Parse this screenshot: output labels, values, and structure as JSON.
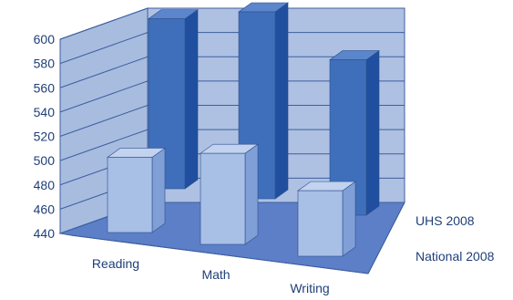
{
  "chart_data": {
    "type": "bar",
    "categories": [
      "Reading",
      "Math",
      "Writing"
    ],
    "series": [
      {
        "name": "National 2008",
        "values": [
          502,
          515,
          494
        ]
      },
      {
        "name": "UHS 2008",
        "values": [
          580,
          594,
          568
        ]
      }
    ],
    "yticks": [
      440,
      460,
      480,
      500,
      520,
      540,
      560,
      580,
      600
    ],
    "ylim": [
      440,
      600
    ],
    "grid": true,
    "legend_position": "right-depth-axis",
    "colors": {
      "wall": "#a8bce0",
      "floor": "#5c7fc8",
      "national_front": "#a8bfe6",
      "national_side": "#7f9fd6",
      "national_top": "#c2d2ef",
      "uhs_front": "#3f6fba",
      "uhs_side": "#1f4f9e",
      "uhs_top": "#5b86cc",
      "gridline": "#3d5f9e",
      "text": "#1f3f7a"
    }
  }
}
